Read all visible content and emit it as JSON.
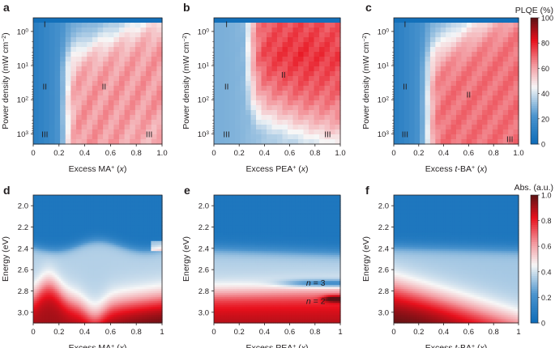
{
  "colors": {
    "blue": "#1f78c1",
    "white": "#f7f7f7",
    "red": "#e8101c",
    "darkred": "#5a1214",
    "black": "#231f20"
  },
  "chart_data": [
    {
      "id": "a",
      "type": "heatmap",
      "panel_letter": "a",
      "xlabel_pre": "Excess MA",
      "xlabel_sup": "+",
      "xlabel_post": " (",
      "xlabel_var": "x",
      "xlabel_end": ")",
      "ylabel_pre": "Power density (mW cm",
      "ylabel_sup": "−2",
      "ylabel_post": ")",
      "xlim": [
        0,
        1
      ],
      "yscale": "log",
      "ylim_reversed": [
        2000,
        0.4
      ],
      "xticks": [
        "0",
        "0.2",
        "0.4",
        "0.6",
        "0.8",
        "1.0"
      ],
      "ytick_mantissa": [
        "10",
        "10",
        "10",
        "10"
      ],
      "ytick_exp": [
        "0",
        "1",
        "2",
        "3"
      ],
      "regions": [
        {
          "label": "I",
          "x": 0.09,
          "y": 0.6
        },
        {
          "label": "II",
          "x": 0.09,
          "y": 40
        },
        {
          "label": "II",
          "x": 0.55,
          "y": 40
        },
        {
          "label": "III",
          "x": 0.09,
          "y": 1000
        },
        {
          "label": "III",
          "x": 0.9,
          "y": 1000
        }
      ],
      "model": "pl_ma",
      "value_range": [
        0,
        100
      ]
    },
    {
      "id": "b",
      "type": "heatmap",
      "panel_letter": "b",
      "xlabel_pre": "Excess PEA",
      "xlabel_sup": "+",
      "xlabel_post": " (",
      "xlabel_var": "x",
      "xlabel_end": ")",
      "ylabel_pre": "Power density (mW cm",
      "ylabel_sup": "−2",
      "ylabel_post": ")",
      "xlim": [
        0,
        1
      ],
      "yscale": "log",
      "ylim_reversed": [
        2000,
        0.4
      ],
      "xticks": [
        "0",
        "0.2",
        "0.4",
        "0.6",
        "0.8",
        "1.0"
      ],
      "ytick_mantissa": [
        "10",
        "10",
        "10",
        "10"
      ],
      "ytick_exp": [
        "0",
        "1",
        "2",
        "3"
      ],
      "regions": [
        {
          "label": "I",
          "x": 0.1,
          "y": 0.6
        },
        {
          "label": "II",
          "x": 0.1,
          "y": 40
        },
        {
          "label": "II",
          "x": 0.55,
          "y": 18
        },
        {
          "label": "III",
          "x": 0.1,
          "y": 1000
        },
        {
          "label": "III",
          "x": 0.9,
          "y": 1000
        }
      ],
      "model": "pl_pea",
      "value_range": [
        0,
        100
      ]
    },
    {
      "id": "c",
      "type": "heatmap",
      "panel_letter": "c",
      "xlabel_pre": "Excess ",
      "xlabel_var2": "t",
      "xlabel_mid": "-BA",
      "xlabel_sup": "+",
      "xlabel_post": " (",
      "xlabel_var": "x",
      "xlabel_end": ")",
      "ylabel_pre": "Power density (mW cm",
      "ylabel_sup": "−2",
      "ylabel_post": ")",
      "xlim": [
        0,
        1
      ],
      "yscale": "log",
      "ylim_reversed": [
        2000,
        0.4
      ],
      "xticks": [
        "0",
        "0.2",
        "0.4",
        "0.6",
        "0.8",
        "1.0"
      ],
      "ytick_mantissa": [
        "10",
        "10",
        "10",
        "10"
      ],
      "ytick_exp": [
        "0",
        "1",
        "2",
        "3"
      ],
      "regions": [
        {
          "label": "I",
          "x": 0.09,
          "y": 0.6
        },
        {
          "label": "II",
          "x": 0.09,
          "y": 40
        },
        {
          "label": "II",
          "x": 0.6,
          "y": 70
        },
        {
          "label": "III",
          "x": 0.09,
          "y": 1000
        },
        {
          "label": "III",
          "x": 0.93,
          "y": 1400
        }
      ],
      "model": "pl_tba",
      "value_range": [
        0,
        100
      ],
      "colorbar": {
        "title": "PLQE (%)",
        "ticks": [
          "0",
          "20",
          "40",
          "60",
          "80",
          "100"
        ],
        "range": [
          0,
          100
        ]
      }
    },
    {
      "id": "d",
      "type": "heatmap",
      "panel_letter": "d",
      "xlabel_pre": "Excess MA",
      "xlabel_sup": "+",
      "xlabel_post": " (",
      "xlabel_var": "x",
      "xlabel_end": ")",
      "ylabel_pre": "Energy (eV)",
      "xlim": [
        0,
        1
      ],
      "ylim_reversed": [
        3.1,
        1.9
      ],
      "xticks": [
        "0",
        "0.2",
        "0.4",
        "0.6",
        "0.8",
        "1"
      ],
      "yticks": [
        "2.0",
        "2.2",
        "2.4",
        "2.6",
        "2.8",
        "3.0"
      ],
      "annotations": [],
      "model": "abs_ma",
      "value_range": [
        0,
        1
      ]
    },
    {
      "id": "e",
      "type": "heatmap",
      "panel_letter": "e",
      "xlabel_pre": "Excess PEA",
      "xlabel_sup": "+",
      "xlabel_post": " (",
      "xlabel_var": "x",
      "xlabel_end": ")",
      "ylabel_pre": "Energy (eV)",
      "xlim": [
        0,
        1
      ],
      "ylim_reversed": [
        3.1,
        1.9
      ],
      "xticks": [
        "0",
        "0.2",
        "0.4",
        "0.6",
        "0.8",
        "1"
      ],
      "yticks": [
        "2.0",
        "2.2",
        "2.4",
        "2.6",
        "2.8",
        "3.0"
      ],
      "annotations": [
        {
          "label_var": "n",
          "label_rest": " = 3",
          "x": 0.73,
          "y": 2.72
        },
        {
          "label_var": "n",
          "label_rest": " = 2",
          "x": 0.73,
          "y": 2.89
        }
      ],
      "model": "abs_pea",
      "value_range": [
        0,
        1
      ]
    },
    {
      "id": "f",
      "type": "heatmap",
      "panel_letter": "f",
      "xlabel_pre": "Excess ",
      "xlabel_var2": "t",
      "xlabel_mid": "-BA",
      "xlabel_sup": "+",
      "xlabel_post": " (",
      "xlabel_var": "x",
      "xlabel_end": ")",
      "ylabel_pre": "Energy (eV)",
      "xlim": [
        0,
        1
      ],
      "ylim_reversed": [
        3.1,
        1.9
      ],
      "xticks": [
        "0",
        "0.2",
        "0.4",
        "0.6",
        "0.8",
        "1"
      ],
      "yticks": [
        "2.0",
        "2.2",
        "2.4",
        "2.6",
        "2.8",
        "3.0"
      ],
      "annotations": [],
      "model": "abs_tba",
      "value_range": [
        0,
        1
      ],
      "colorbar": {
        "title": "Abs. (a.u.)",
        "ticks": [
          "0",
          "0.2",
          "0.4",
          "0.6",
          "0.8",
          "1.0"
        ],
        "range": [
          0,
          1
        ]
      }
    }
  ]
}
